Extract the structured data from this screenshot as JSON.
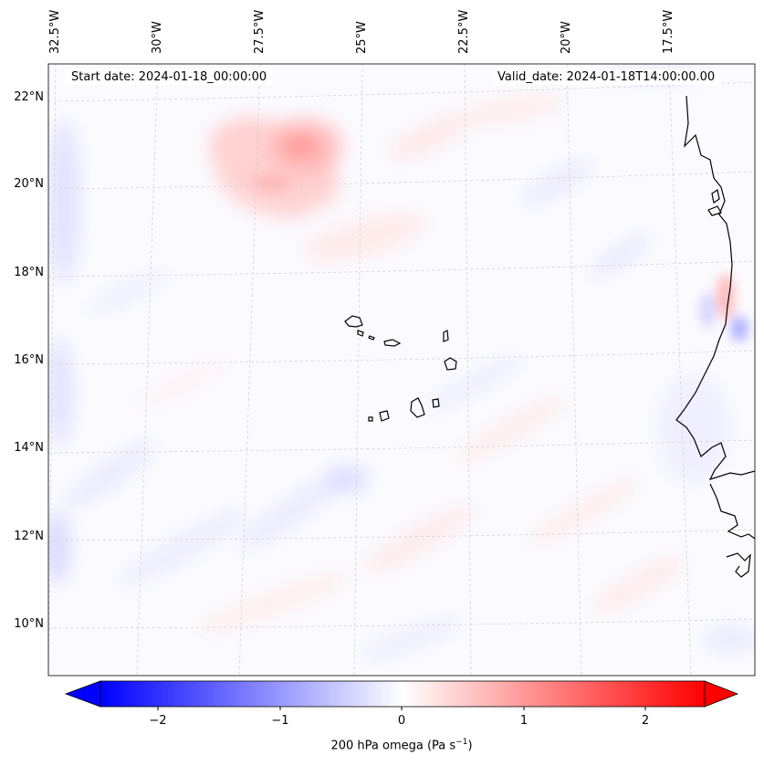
{
  "map": {
    "lon_labels": [
      "32.5°W",
      "30°W",
      "27.5°W",
      "25°W",
      "22.5°W",
      "20°W",
      "17.5°W"
    ],
    "lat_labels": [
      "22°N",
      "20°N",
      "18°N",
      "16°N",
      "14°N",
      "12°N",
      "10°N"
    ],
    "start_date": "Start date: 2024-01-18_00:00:00",
    "valid_date": "Valid_date: 2024-01-18T14:00:00.00",
    "gridline_color": "#cccccc",
    "coastline_color": "#000000"
  },
  "colorbar": {
    "ticks": [
      "−2",
      "−1",
      "0",
      "1",
      "2"
    ],
    "label": "200 hPa omega (Pa s",
    "label_sup": "−1",
    "label_end": ")",
    "cmap": "bwr",
    "negative_color": "#0000ff",
    "positive_color": "#ff0000"
  }
}
